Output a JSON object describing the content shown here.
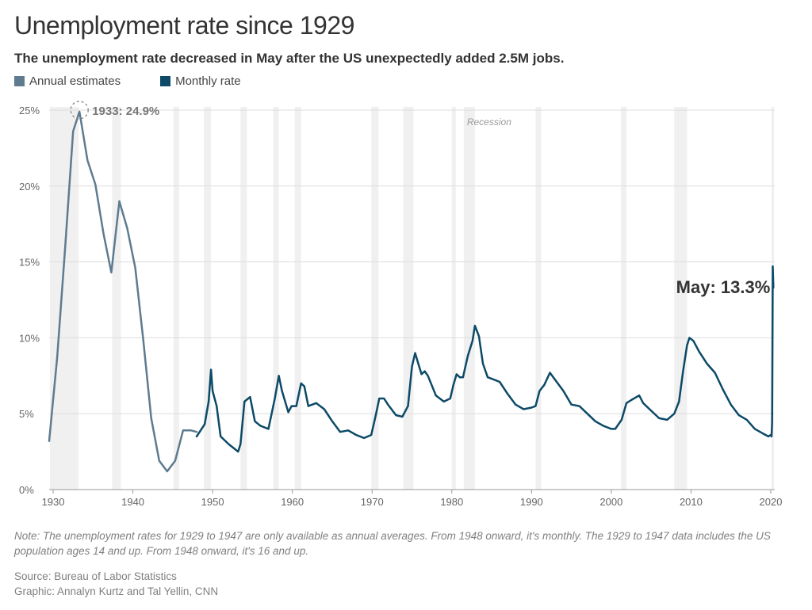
{
  "title": "Unemployment rate since 1929",
  "subtitle": "The unemployment rate decreased in May after the US unexpectedly added 2.5M jobs.",
  "legend": [
    {
      "label": "Annual estimates",
      "color": "#5e7b8f"
    },
    {
      "label": "Monthly rate",
      "color": "#0c4a67"
    }
  ],
  "annotations": {
    "peak": "1933: 24.9%",
    "latest": "May: 13.3%",
    "recession": "Recession"
  },
  "note": "Note: The unemployment rates for 1929 to 1947 are only available as annual averages. From 1948 onward, it's monthly. The 1929 to 1947 data includes the US population ages 14 and up. From 1948 onward, it's 16 and up.",
  "source": "Source: Bureau of Labor Statistics",
  "graphic": "Graphic: Annalyn Kurtz and Tal Yellin, CNN",
  "colors": {
    "annual": "#5e7b8f",
    "monthly": "#0c4a67",
    "recession": "#f0f0f0",
    "grid": "#dddddd"
  },
  "chart_data": {
    "type": "line",
    "title": "Unemployment rate since 1929",
    "xlabel": "",
    "ylabel": "",
    "xlim": [
      1929.5,
      2020.5
    ],
    "ylim": [
      0,
      25
    ],
    "x_ticks": [
      {
        "value": 1930,
        "label": "1930"
      },
      {
        "value": 1940,
        "label": "1940"
      },
      {
        "value": 1950,
        "label": "1950"
      },
      {
        "value": 1960,
        "label": "1960"
      },
      {
        "value": 1970,
        "label": "1970"
      },
      {
        "value": 1980,
        "label": "1980"
      },
      {
        "value": 1990,
        "label": "1990"
      },
      {
        "value": 2000,
        "label": "2000"
      },
      {
        "value": 2010,
        "label": "2010"
      },
      {
        "value": 2020,
        "label": "2020"
      }
    ],
    "y_ticks": [
      {
        "value": 0,
        "label": "0%"
      },
      {
        "value": 5,
        "label": "5%"
      },
      {
        "value": 10,
        "label": "10%"
      },
      {
        "value": 15,
        "label": "15%"
      },
      {
        "value": 20,
        "label": "20%"
      },
      {
        "value": 25,
        "label": "25%"
      }
    ],
    "recessions": [
      [
        1929.6,
        1933.2
      ],
      [
        1937.4,
        1938.5
      ],
      [
        1945.1,
        1945.8
      ],
      [
        1948.9,
        1949.8
      ],
      [
        1953.5,
        1954.3
      ],
      [
        1957.6,
        1958.3
      ],
      [
        1960.3,
        1961.1
      ],
      [
        1969.9,
        1970.8
      ],
      [
        1973.9,
        1975.2
      ],
      [
        1980.0,
        1980.5
      ],
      [
        1981.5,
        1982.9
      ],
      [
        1990.5,
        1991.2
      ],
      [
        2001.2,
        2001.9
      ],
      [
        2007.9,
        2009.5
      ],
      [
        2020.1,
        2020.4
      ]
    ],
    "peak_point": {
      "x": 1933.3,
      "y": 24.9
    },
    "series": [
      {
        "name": "Annual estimates",
        "points": [
          [
            1929.5,
            3.2
          ],
          [
            1930.5,
            8.7
          ],
          [
            1931.5,
            15.9
          ],
          [
            1932.5,
            23.6
          ],
          [
            1933.3,
            24.9
          ],
          [
            1934.3,
            21.7
          ],
          [
            1935.3,
            20.1
          ],
          [
            1936.3,
            16.9
          ],
          [
            1937.3,
            14.3
          ],
          [
            1938.3,
            19.0
          ],
          [
            1939.3,
            17.2
          ],
          [
            1940.3,
            14.6
          ],
          [
            1941.3,
            9.9
          ],
          [
            1942.3,
            4.7
          ],
          [
            1943.3,
            1.9
          ],
          [
            1944.3,
            1.2
          ],
          [
            1945.3,
            1.9
          ],
          [
            1946.3,
            3.9
          ],
          [
            1947.3,
            3.9
          ],
          [
            1948.0,
            3.8
          ]
        ]
      },
      {
        "name": "Monthly rate",
        "points": [
          [
            1948.0,
            3.5
          ],
          [
            1948.5,
            3.9
          ],
          [
            1949.0,
            4.3
          ],
          [
            1949.5,
            5.8
          ],
          [
            1949.8,
            7.9
          ],
          [
            1950.0,
            6.5
          ],
          [
            1950.5,
            5.5
          ],
          [
            1951.0,
            3.5
          ],
          [
            1952.0,
            3.0
          ],
          [
            1953.2,
            2.5
          ],
          [
            1953.5,
            3.0
          ],
          [
            1954.0,
            5.8
          ],
          [
            1954.7,
            6.1
          ],
          [
            1955.3,
            4.5
          ],
          [
            1956.0,
            4.2
          ],
          [
            1957.0,
            4.0
          ],
          [
            1957.8,
            6.0
          ],
          [
            1958.3,
            7.5
          ],
          [
            1958.7,
            6.5
          ],
          [
            1959.5,
            5.1
          ],
          [
            1959.9,
            5.5
          ],
          [
            1960.5,
            5.5
          ],
          [
            1961.1,
            7.0
          ],
          [
            1961.5,
            6.8
          ],
          [
            1962.0,
            5.5
          ],
          [
            1963.0,
            5.7
          ],
          [
            1964.0,
            5.3
          ],
          [
            1965.0,
            4.5
          ],
          [
            1966.0,
            3.8
          ],
          [
            1967.0,
            3.9
          ],
          [
            1968.0,
            3.6
          ],
          [
            1969.0,
            3.4
          ],
          [
            1969.9,
            3.6
          ],
          [
            1970.5,
            5.0
          ],
          [
            1970.9,
            6.0
          ],
          [
            1971.5,
            6.0
          ],
          [
            1972.0,
            5.6
          ],
          [
            1973.0,
            4.9
          ],
          [
            1973.8,
            4.8
          ],
          [
            1974.5,
            5.5
          ],
          [
            1975.0,
            8.1
          ],
          [
            1975.4,
            9.0
          ],
          [
            1975.8,
            8.3
          ],
          [
            1976.2,
            7.6
          ],
          [
            1976.6,
            7.8
          ],
          [
            1977.0,
            7.5
          ],
          [
            1978.0,
            6.2
          ],
          [
            1979.0,
            5.8
          ],
          [
            1979.8,
            6.0
          ],
          [
            1980.2,
            6.9
          ],
          [
            1980.6,
            7.6
          ],
          [
            1981.0,
            7.4
          ],
          [
            1981.4,
            7.4
          ],
          [
            1982.0,
            8.8
          ],
          [
            1982.6,
            9.8
          ],
          [
            1982.9,
            10.8
          ],
          [
            1983.4,
            10.1
          ],
          [
            1983.9,
            8.3
          ],
          [
            1984.5,
            7.4
          ],
          [
            1985.0,
            7.3
          ],
          [
            1986.0,
            7.1
          ],
          [
            1987.0,
            6.3
          ],
          [
            1988.0,
            5.6
          ],
          [
            1989.0,
            5.3
          ],
          [
            1990.0,
            5.4
          ],
          [
            1990.5,
            5.5
          ],
          [
            1991.0,
            6.5
          ],
          [
            1991.6,
            6.9
          ],
          [
            1992.3,
            7.7
          ],
          [
            1993.0,
            7.2
          ],
          [
            1994.0,
            6.5
          ],
          [
            1995.0,
            5.6
          ],
          [
            1996.0,
            5.5
          ],
          [
            1997.0,
            5.0
          ],
          [
            1998.0,
            4.5
          ],
          [
            1999.0,
            4.2
          ],
          [
            2000.0,
            4.0
          ],
          [
            2000.5,
            4.0
          ],
          [
            2001.3,
            4.6
          ],
          [
            2001.9,
            5.7
          ],
          [
            2002.5,
            5.9
          ],
          [
            2003.5,
            6.2
          ],
          [
            2004.0,
            5.7
          ],
          [
            2005.0,
            5.2
          ],
          [
            2006.0,
            4.7
          ],
          [
            2007.0,
            4.6
          ],
          [
            2007.9,
            5.0
          ],
          [
            2008.5,
            5.8
          ],
          [
            2009.0,
            7.8
          ],
          [
            2009.5,
            9.5
          ],
          [
            2009.8,
            10.0
          ],
          [
            2010.3,
            9.8
          ],
          [
            2011.0,
            9.1
          ],
          [
            2012.0,
            8.3
          ],
          [
            2013.0,
            7.7
          ],
          [
            2014.0,
            6.6
          ],
          [
            2015.0,
            5.6
          ],
          [
            2016.0,
            4.9
          ],
          [
            2017.0,
            4.6
          ],
          [
            2018.0,
            4.0
          ],
          [
            2019.0,
            3.7
          ],
          [
            2019.7,
            3.5
          ],
          [
            2020.0,
            3.6
          ],
          [
            2020.1,
            3.5
          ],
          [
            2020.17,
            4.4
          ],
          [
            2020.25,
            14.7
          ],
          [
            2020.33,
            13.3
          ]
        ]
      }
    ]
  }
}
